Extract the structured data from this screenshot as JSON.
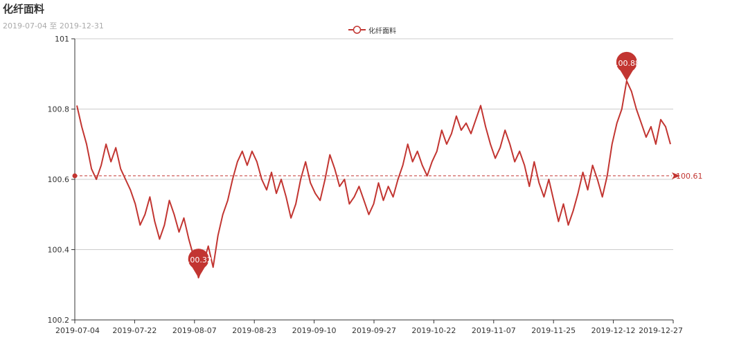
{
  "title": "化纤面料",
  "subtitle": "2019-07-04 至 2019-12-31",
  "legend": {
    "label": "化纤面料",
    "icon": "circle-line-icon"
  },
  "colors": {
    "series": "#c23531",
    "axis": "#333333",
    "grid": "#cccccc",
    "subtitle": "#aaaaaa"
  },
  "chart_data": {
    "type": "line",
    "title": "化纤面料",
    "subtitle": "2019-07-04 至 2019-12-31",
    "xlabel": "",
    "ylabel": "",
    "ylim": [
      100.2,
      101
    ],
    "y_ticks": [
      "100.2",
      "100.4",
      "100.6",
      "100.8",
      "101"
    ],
    "x_ticks": [
      "2019-07-04",
      "2019-07-22",
      "2019-08-07",
      "2019-08-23",
      "2019-09-10",
      "2019-09-27",
      "2019-10-22",
      "2019-11-07",
      "2019-11-25",
      "2019-12-12",
      "2019-12-27"
    ],
    "grid": "horizontal",
    "legend_position": "top-center",
    "series": [
      {
        "name": "化纤面料",
        "values": [
          100.81,
          100.75,
          100.7,
          100.63,
          100.6,
          100.64,
          100.7,
          100.65,
          100.69,
          100.63,
          100.6,
          100.57,
          100.53,
          100.47,
          100.5,
          100.55,
          100.48,
          100.43,
          100.47,
          100.54,
          100.5,
          100.45,
          100.49,
          100.43,
          100.38,
          100.32,
          100.36,
          100.41,
          100.35,
          100.44,
          100.5,
          100.54,
          100.6,
          100.65,
          100.68,
          100.64,
          100.68,
          100.65,
          100.6,
          100.57,
          100.62,
          100.56,
          100.6,
          100.55,
          100.49,
          100.53,
          100.6,
          100.65,
          100.59,
          100.56,
          100.54,
          100.6,
          100.67,
          100.63,
          100.58,
          100.6,
          100.53,
          100.55,
          100.58,
          100.54,
          100.5,
          100.53,
          100.59,
          100.54,
          100.58,
          100.55,
          100.6,
          100.64,
          100.7,
          100.65,
          100.68,
          100.64,
          100.61,
          100.65,
          100.68,
          100.74,
          100.7,
          100.73,
          100.78,
          100.74,
          100.76,
          100.73,
          100.77,
          100.81,
          100.75,
          100.7,
          100.66,
          100.69,
          100.74,
          100.7,
          100.65,
          100.68,
          100.64,
          100.58,
          100.65,
          100.59,
          100.55,
          100.6,
          100.54,
          100.48,
          100.53,
          100.47,
          100.51,
          100.56,
          100.62,
          100.57,
          100.64,
          100.6,
          100.55,
          100.61,
          100.7,
          100.76,
          100.8,
          100.88,
          100.85,
          100.8,
          100.76,
          100.72,
          100.75,
          100.7,
          100.77,
          100.75,
          100.7
        ]
      }
    ],
    "mark_points": [
      {
        "type": "max",
        "label": "100.88"
      },
      {
        "type": "min",
        "label": "100.32"
      }
    ],
    "mark_line": {
      "type": "average",
      "label": "100.61",
      "value": 100.61
    }
  }
}
